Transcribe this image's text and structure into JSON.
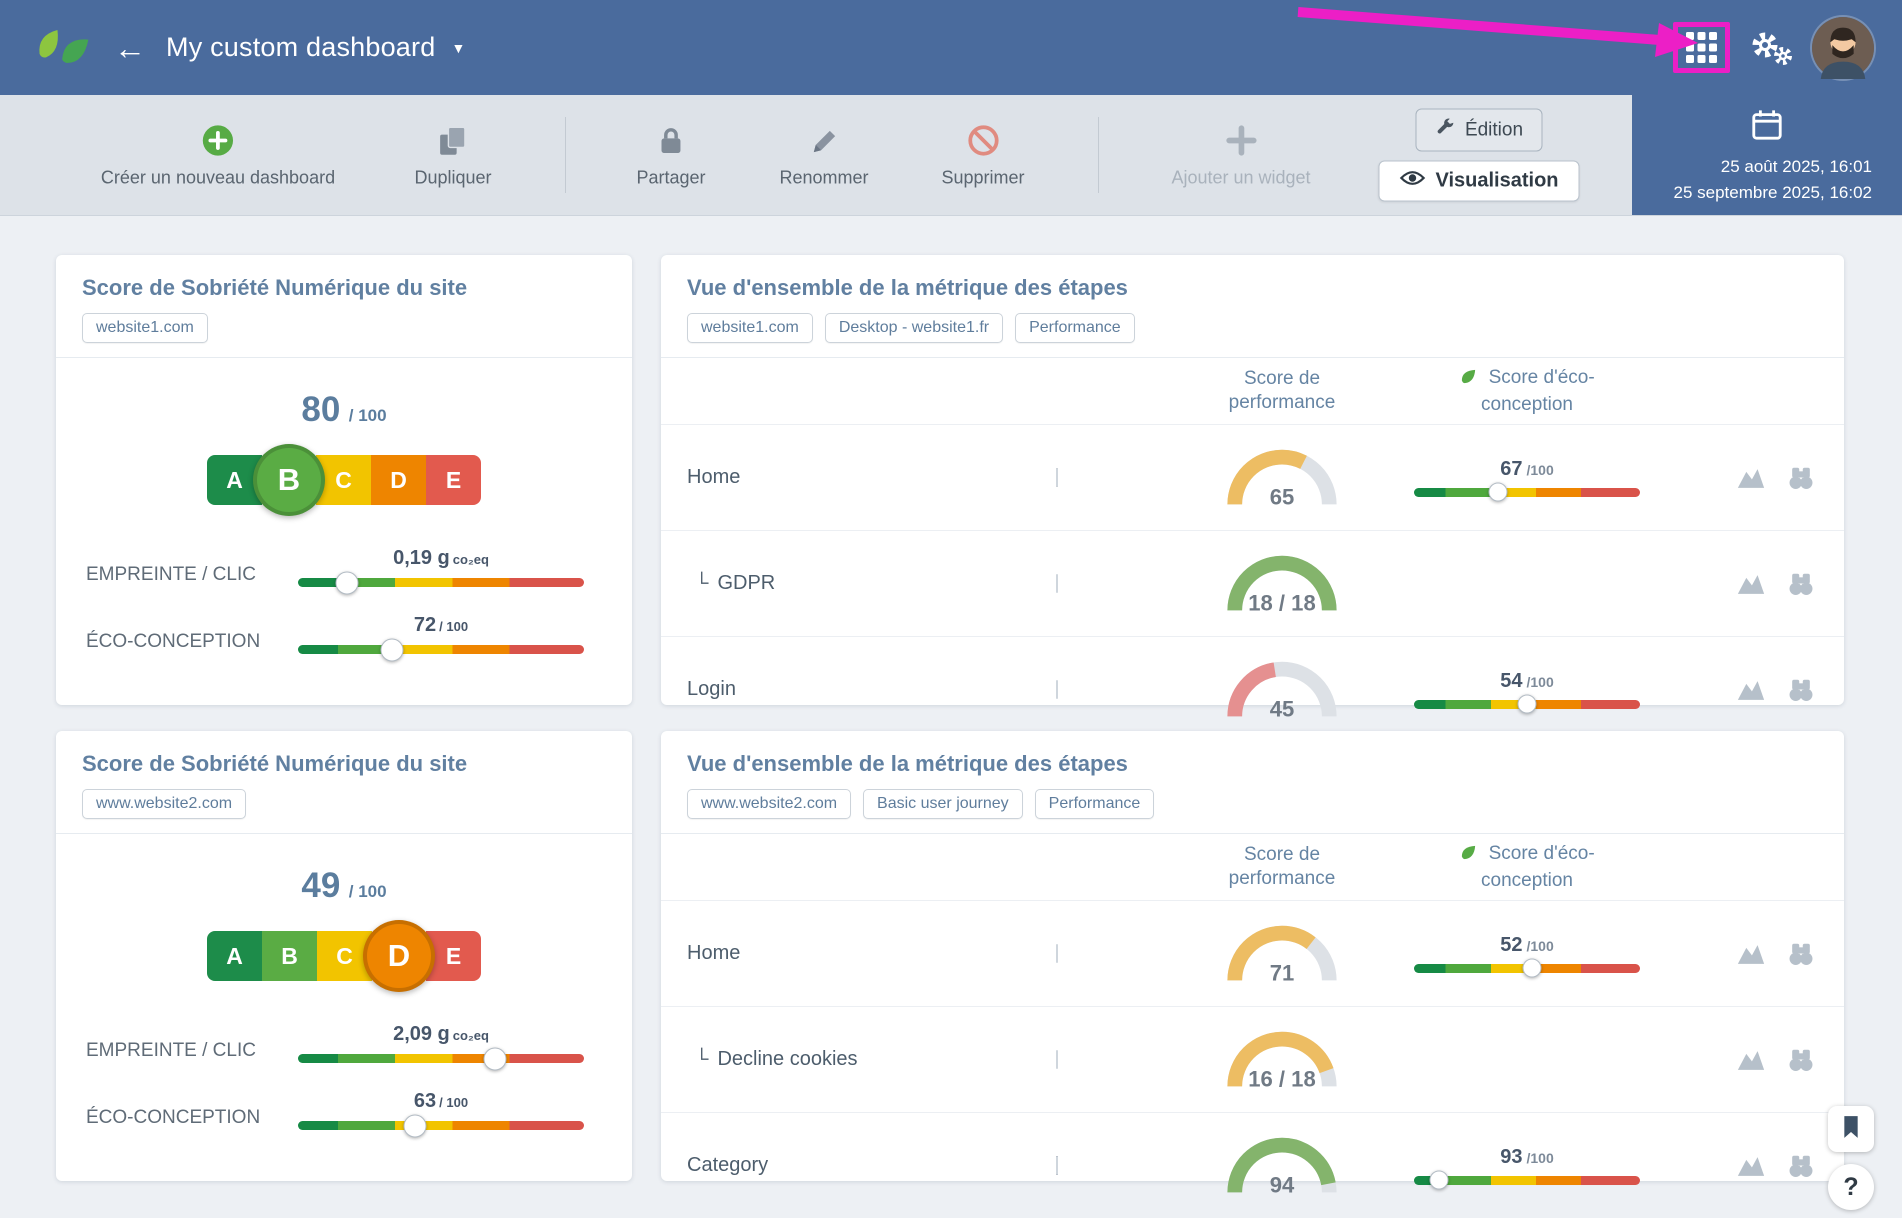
{
  "annotation": {
    "color": "#ec1fc6"
  },
  "header": {
    "title": "My custom dashboard",
    "back_glyph": "←",
    "caret_glyph": "▼"
  },
  "toolbar": {
    "create": "Créer un nouveau dashboard",
    "duplicate": "Dupliquer",
    "share": "Partager",
    "rename": "Renommer",
    "delete": "Supprimer",
    "add_widget": "Ajouter un widget",
    "edition": "Édition",
    "visualisation": "Visualisation"
  },
  "date_range": {
    "start": "25 août 2025, 16:01",
    "end": "25 septembre 2025, 16:02"
  },
  "substep_glyph": "└",
  "floating": {
    "help": "?"
  },
  "widgets": [
    {
      "type": "sobriety",
      "title": "Score de Sobriété Numérique du site",
      "tag": "website1.com",
      "score": "80",
      "score_suffix": "/ 100",
      "grades": [
        "A",
        "B",
        "C",
        "D",
        "E"
      ],
      "active_grade": "B",
      "meters": [
        {
          "label": "EMPREINTE / CLIC",
          "value": "0,19 g",
          "unit": "co₂eq",
          "knob_pct": 17
        },
        {
          "label": "ÉCO-CONCEPTION",
          "value": "72",
          "unit": "/ 100",
          "knob_pct": 33
        }
      ]
    },
    {
      "type": "steps",
      "title": "Vue d'ensemble de la métrique des étapes",
      "tags": [
        "website1.com",
        "Desktop - website1.fr",
        "Performance"
      ],
      "col_performance": "Score de performance",
      "col_eco": "Score d'éco-conception",
      "rows": [
        {
          "name": "Home",
          "thumb": "site1-home",
          "gauge": {
            "label": "65",
            "pct": 65,
            "color": "#edbd63"
          },
          "eco": {
            "value": "67",
            "suffix": "/100",
            "knob_pct": 37
          }
        },
        {
          "name": "GDPR",
          "substep": true,
          "thumb": "site1-gdpr",
          "gauge": {
            "label": "18 / 18",
            "pct": 100,
            "color": "#84b46c"
          }
        },
        {
          "name": "Login",
          "thumb": "site1-login",
          "gauge": {
            "label": "45",
            "pct": 45,
            "color": "#e59090"
          },
          "eco": {
            "value": "54",
            "suffix": "/100",
            "knob_pct": 50
          }
        }
      ]
    },
    {
      "type": "sobriety",
      "title": "Score de Sobriété Numérique du site",
      "tag": "www.website2.com",
      "score": "49",
      "score_suffix": "/ 100",
      "grades": [
        "A",
        "B",
        "C",
        "D",
        "E"
      ],
      "active_grade": "D",
      "meters": [
        {
          "label": "EMPREINTE / CLIC",
          "value": "2,09 g",
          "unit": "co₂eq",
          "knob_pct": 69
        },
        {
          "label": "ÉCO-CONCEPTION",
          "value": "63",
          "unit": "/ 100",
          "knob_pct": 41
        }
      ]
    },
    {
      "type": "steps",
      "title": "Vue d'ensemble de la métrique des étapes",
      "tags": [
        "www.website2.com",
        "Basic user journey",
        "Performance"
      ],
      "col_performance": "Score de performance",
      "col_eco": "Score d'éco-conception",
      "rows": [
        {
          "name": "Home",
          "thumb": "site2-home",
          "gauge": {
            "label": "71",
            "pct": 71,
            "color": "#edbd63"
          },
          "eco": {
            "value": "52",
            "suffix": "/100",
            "knob_pct": 52
          }
        },
        {
          "name": "Decline cookies",
          "substep": true,
          "thumb": "site2-decline",
          "gauge": {
            "label": "16 / 18",
            "pct": 89,
            "color": "#edbd63"
          }
        },
        {
          "name": "Category",
          "thumb": "site2-category",
          "gauge": {
            "label": "94",
            "pct": 94,
            "color": "#84b46c"
          },
          "eco": {
            "value": "93",
            "suffix": "/100",
            "knob_pct": 11
          }
        }
      ]
    }
  ]
}
